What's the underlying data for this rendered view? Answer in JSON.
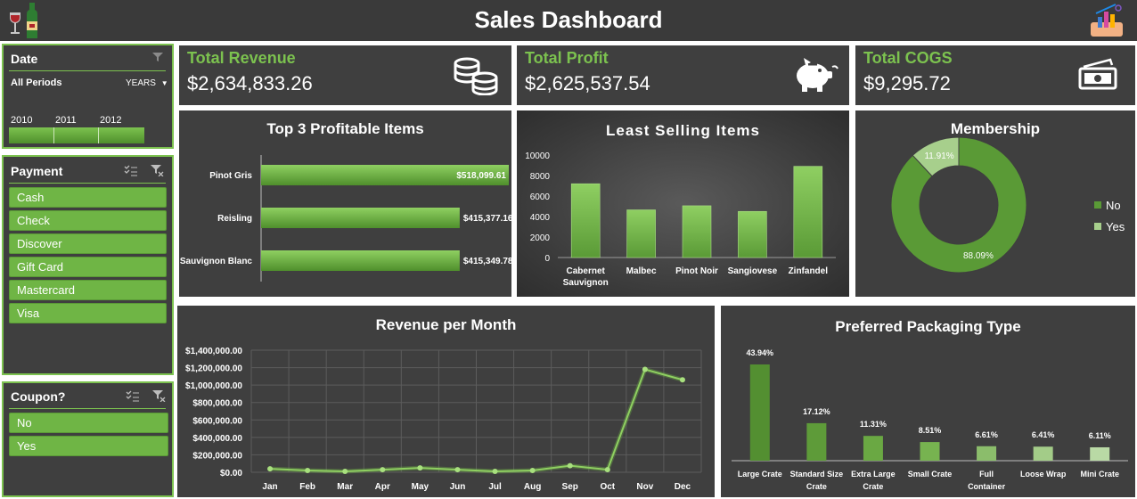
{
  "header": {
    "title": "Sales Dashboard"
  },
  "date_slicer": {
    "title": "Date",
    "period": "All Periods",
    "level": "YEARS",
    "years": [
      "2010",
      "2011",
      "2012"
    ]
  },
  "payment_slicer": {
    "title": "Payment",
    "items": [
      "Cash",
      "Check",
      "Discover",
      "Gift Card",
      "Mastercard",
      "Visa"
    ]
  },
  "coupon_slicer": {
    "title": "Coupon?",
    "items": [
      "No",
      "Yes"
    ]
  },
  "kpis": {
    "revenue": {
      "title": "Total Revenue",
      "value": "$2,634,833.26"
    },
    "profit": {
      "title": "Total Profit",
      "value": "$2,625,537.54"
    },
    "cogs": {
      "title": "Total COGS",
      "value": "$9,295.72"
    }
  },
  "colors": {
    "background": "#3f3f3f",
    "accent": "#7cc24f",
    "bar": "#6fb545",
    "light": "#a7cf8c"
  },
  "chart_data": [
    {
      "id": "top3",
      "type": "bar",
      "orientation": "horizontal",
      "title": "Top 3 Profitable Items",
      "categories": [
        "Pinot Gris",
        "Reisling",
        "Sauvignon Blanc"
      ],
      "values": [
        518099.61,
        415377.16,
        415349.78
      ],
      "labels": [
        "$518,099.61",
        "$415,377.16",
        "$415,349.78"
      ]
    },
    {
      "id": "least",
      "type": "bar",
      "title": "Least Selling Items",
      "categories": [
        [
          "Cabernet",
          "Sauvignon"
        ],
        [
          "Malbec"
        ],
        [
          "Pinot Noir"
        ],
        [
          "Sangiovese"
        ],
        [
          "Zinfandel"
        ]
      ],
      "values": [
        7200,
        4650,
        5050,
        4500,
        8900
      ],
      "ylim": [
        0,
        10000
      ],
      "yticks": [
        "0",
        "2000",
        "4000",
        "6000",
        "8000",
        "10000"
      ]
    },
    {
      "id": "membership",
      "type": "pie",
      "donut": true,
      "title": "Membership",
      "categories": [
        "No",
        "Yes"
      ],
      "values": [
        88.09,
        11.91
      ],
      "labels": [
        "88.09%",
        "11.91%"
      ],
      "legend": "right"
    },
    {
      "id": "revenue",
      "type": "line",
      "title": "Revenue per Month",
      "categories": [
        "Jan",
        "Feb",
        "Mar",
        "Apr",
        "May",
        "Jun",
        "Jul",
        "Aug",
        "Sep",
        "Oct",
        "Nov",
        "Dec"
      ],
      "values": [
        40000,
        20000,
        10000,
        30000,
        50000,
        30000,
        10000,
        20000,
        75000,
        30000,
        1180000,
        1060000
      ],
      "ylim": [
        0,
        1400000
      ],
      "yticks": [
        "$0.00",
        "$200,000.00",
        "$400,000.00",
        "$600,000.00",
        "$800,000.00",
        "$1,000,000.00",
        "$1,200,000.00",
        "$1,400,000.00"
      ],
      "grid": true
    },
    {
      "id": "packaging",
      "type": "bar",
      "title": "Preferred Packaging Type",
      "categories": [
        [
          "Large Crate"
        ],
        [
          "Standard Size",
          "Crate"
        ],
        [
          "Extra Large",
          "Crate"
        ],
        [
          "Small Crate"
        ],
        [
          "Full",
          "Container"
        ],
        [
          "Loose Wrap"
        ],
        [
          "Mini Crate"
        ]
      ],
      "values": [
        43.94,
        17.12,
        11.31,
        8.51,
        6.61,
        6.41,
        6.11
      ],
      "labels": [
        "43.94%",
        "17.12%",
        "11.31%",
        "8.51%",
        "6.61%",
        "6.41%",
        "6.11%"
      ],
      "colors": [
        "#538f31",
        "#5e9b39",
        "#6aa843",
        "#77b350",
        "#8bbd6b",
        "#a3cc88",
        "#b9d9a5"
      ]
    }
  ]
}
